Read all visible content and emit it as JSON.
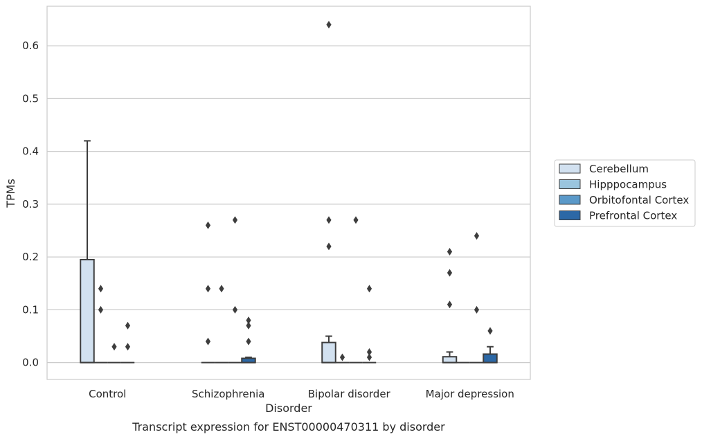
{
  "caption": "Transcript expression for ENST00000470311 by disorder",
  "chart_data": {
    "type": "box",
    "xlabel": "Disorder",
    "ylabel": "TPMs",
    "ylim": [
      -0.032,
      0.675
    ],
    "yticks": [
      "0.0",
      "0.1",
      "0.2",
      "0.3",
      "0.4",
      "0.5",
      "0.6"
    ],
    "grid": "horizontal",
    "categories": [
      "Control",
      "Schizophrenia",
      "Bipolar disorder",
      "Major depression"
    ],
    "legend": {
      "placement": "right",
      "entries": [
        "Cerebellum",
        "Hipppocampus",
        "Orbitofontal Cortex",
        "Prefrontal Cortex"
      ]
    },
    "series": [
      {
        "name": "Cerebellum",
        "color": "#d2e1f0",
        "boxes": [
          {
            "q1": 0,
            "median": 0,
            "q3": 0.195,
            "whisker_low": 0,
            "whisker_high": 0.42,
            "outliers": []
          },
          {
            "q1": 0,
            "median": 0,
            "q3": 0,
            "whisker_low": 0,
            "whisker_high": 0,
            "outliers": [
              0.26,
              0.14,
              0.04
            ]
          },
          {
            "q1": 0,
            "median": 0,
            "q3": 0.038,
            "whisker_low": 0,
            "whisker_high": 0.05,
            "outliers": [
              0.64,
              0.27,
              0.22
            ]
          },
          {
            "q1": 0,
            "median": 0,
            "q3": 0.011,
            "whisker_low": 0,
            "whisker_high": 0.02,
            "outliers": [
              0.21,
              0.17,
              0.11
            ]
          }
        ]
      },
      {
        "name": "Hipppocampus",
        "color": "#9ac5de",
        "boxes": [
          {
            "q1": 0,
            "median": 0,
            "q3": 0,
            "whisker_low": 0,
            "whisker_high": 0,
            "outliers": [
              0.14,
              0.1
            ]
          },
          {
            "q1": 0,
            "median": 0,
            "q3": 0,
            "whisker_low": 0,
            "whisker_high": 0,
            "outliers": [
              0.14
            ]
          },
          {
            "q1": 0,
            "median": 0,
            "q3": 0,
            "whisker_low": 0,
            "whisker_high": 0,
            "outliers": [
              0.01
            ]
          },
          {
            "q1": 0,
            "median": 0,
            "q3": 0,
            "whisker_low": 0,
            "whisker_high": 0,
            "outliers": []
          }
        ]
      },
      {
        "name": "Orbitofontal Cortex",
        "color": "#5a99c9",
        "boxes": [
          {
            "q1": 0,
            "median": 0,
            "q3": 0,
            "whisker_low": 0,
            "whisker_high": 0,
            "outliers": [
              0.03
            ]
          },
          {
            "q1": 0,
            "median": 0,
            "q3": 0,
            "whisker_low": 0,
            "whisker_high": 0,
            "outliers": [
              0.27,
              0.1
            ]
          },
          {
            "q1": 0,
            "median": 0,
            "q3": 0,
            "whisker_low": 0,
            "whisker_high": 0,
            "outliers": [
              0.27
            ]
          },
          {
            "q1": 0,
            "median": 0,
            "q3": 0,
            "whisker_low": 0,
            "whisker_high": 0,
            "outliers": [
              0.24,
              0.1
            ]
          }
        ]
      },
      {
        "name": "Prefrontal Cortex",
        "color": "#2c68a6",
        "boxes": [
          {
            "q1": 0,
            "median": 0,
            "q3": 0,
            "whisker_low": 0,
            "whisker_high": 0,
            "outliers": [
              0.07,
              0.03
            ]
          },
          {
            "q1": 0,
            "median": 0,
            "q3": 0.008,
            "whisker_low": 0,
            "whisker_high": 0.01,
            "outliers": [
              0.08,
              0.07,
              0.04
            ]
          },
          {
            "q1": 0,
            "median": 0,
            "q3": 0,
            "whisker_low": 0,
            "whisker_high": 0,
            "outliers": [
              0.14,
              0.02,
              0.01
            ]
          },
          {
            "q1": 0,
            "median": 0,
            "q3": 0.016,
            "whisker_low": 0,
            "whisker_high": 0.03,
            "outliers": [
              0.06
            ]
          }
        ]
      }
    ]
  }
}
